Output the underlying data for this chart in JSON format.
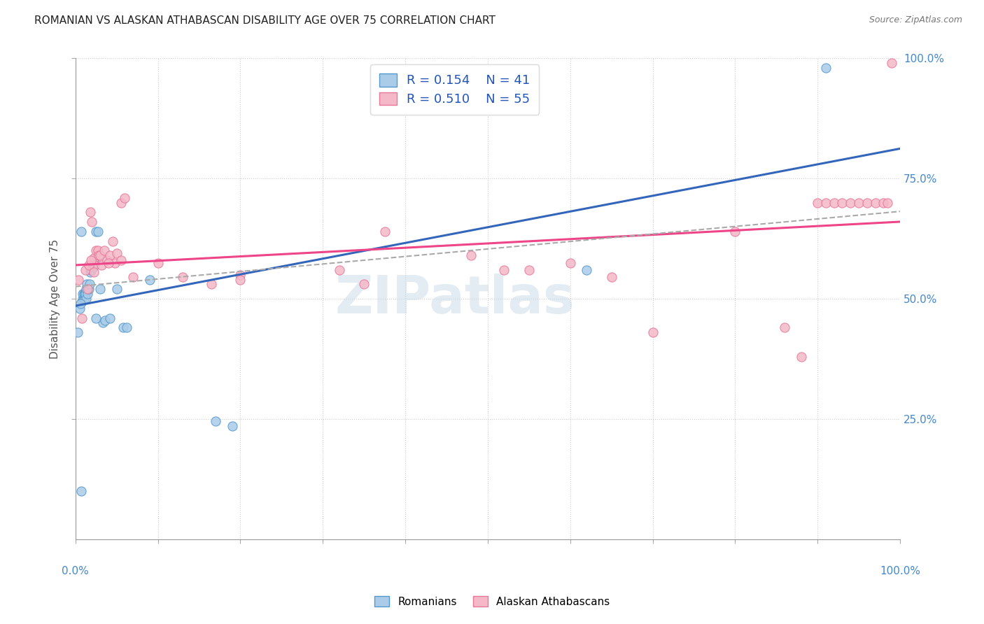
{
  "title": "ROMANIAN VS ALASKAN ATHABASCAN DISABILITY AGE OVER 75 CORRELATION CHART",
  "source": "Source: ZipAtlas.com",
  "ylabel": "Disability Age Over 75",
  "xlim": [
    0.0,
    1.0
  ],
  "ylim": [
    0.0,
    1.0
  ],
  "yticks": [
    0.25,
    0.5,
    0.75,
    1.0
  ],
  "ytick_labels": [
    "25.0%",
    "50.0%",
    "75.0%",
    "100.0%"
  ],
  "legend_r_blue": "R = 0.154",
  "legend_n_blue": "N = 41",
  "legend_r_pink": "R = 0.510",
  "legend_n_pink": "N = 55",
  "background_color": "#ffffff",
  "watermark_text": "ZIPatlas",
  "blue_color": "#aacce8",
  "pink_color": "#f4b8c8",
  "blue_edge_color": "#5599cc",
  "pink_edge_color": "#e87799",
  "blue_line_color": "#3366bb",
  "pink_line_color": "#ee4488",
  "dashed_line_color": "#aaaaaa",
  "roman_x": [
    0.003,
    0.007,
    0.008,
    0.009,
    0.009,
    0.01,
    0.01,
    0.011,
    0.011,
    0.012,
    0.012,
    0.013,
    0.013,
    0.014,
    0.015,
    0.016,
    0.017,
    0.018,
    0.019,
    0.02,
    0.021,
    0.022,
    0.023,
    0.025,
    0.027,
    0.03,
    0.033,
    0.036,
    0.042,
    0.05,
    0.058,
    0.062,
    0.09,
    0.17,
    0.19,
    0.62,
    0.91,
    0.025,
    0.007,
    0.005,
    0.006
  ],
  "roman_y": [
    0.43,
    0.64,
    0.495,
    0.5,
    0.51,
    0.5,
    0.51,
    0.5,
    0.51,
    0.515,
    0.51,
    0.5,
    0.52,
    0.53,
    0.51,
    0.52,
    0.53,
    0.555,
    0.56,
    0.57,
    0.565,
    0.57,
    0.575,
    0.64,
    0.64,
    0.52,
    0.45,
    0.455,
    0.46,
    0.52,
    0.44,
    0.44,
    0.54,
    0.245,
    0.235,
    0.56,
    0.98,
    0.46,
    0.1,
    0.48,
    0.49
  ],
  "alaska_x": [
    0.004,
    0.008,
    0.015,
    0.018,
    0.02,
    0.022,
    0.023,
    0.025,
    0.027,
    0.028,
    0.03,
    0.032,
    0.035,
    0.038,
    0.042,
    0.045,
    0.048,
    0.05,
    0.055,
    0.06,
    0.1,
    0.13,
    0.165,
    0.2,
    0.2,
    0.32,
    0.35,
    0.48,
    0.52,
    0.6,
    0.65,
    0.8,
    0.86,
    0.88,
    0.9,
    0.91,
    0.92,
    0.93,
    0.94,
    0.95,
    0.96,
    0.97,
    0.98,
    0.985,
    0.99,
    0.012,
    0.016,
    0.019,
    0.022,
    0.04,
    0.055,
    0.07,
    0.375,
    0.55,
    0.7
  ],
  "alaska_y": [
    0.54,
    0.46,
    0.52,
    0.68,
    0.66,
    0.585,
    0.57,
    0.6,
    0.6,
    0.59,
    0.59,
    0.57,
    0.6,
    0.58,
    0.59,
    0.62,
    0.575,
    0.595,
    0.7,
    0.71,
    0.575,
    0.545,
    0.53,
    0.55,
    0.54,
    0.56,
    0.53,
    0.59,
    0.56,
    0.575,
    0.545,
    0.64,
    0.44,
    0.38,
    0.7,
    0.7,
    0.7,
    0.7,
    0.7,
    0.7,
    0.7,
    0.7,
    0.7,
    0.7,
    0.99,
    0.56,
    0.57,
    0.58,
    0.555,
    0.575,
    0.58,
    0.545,
    0.64,
    0.56,
    0.43
  ]
}
